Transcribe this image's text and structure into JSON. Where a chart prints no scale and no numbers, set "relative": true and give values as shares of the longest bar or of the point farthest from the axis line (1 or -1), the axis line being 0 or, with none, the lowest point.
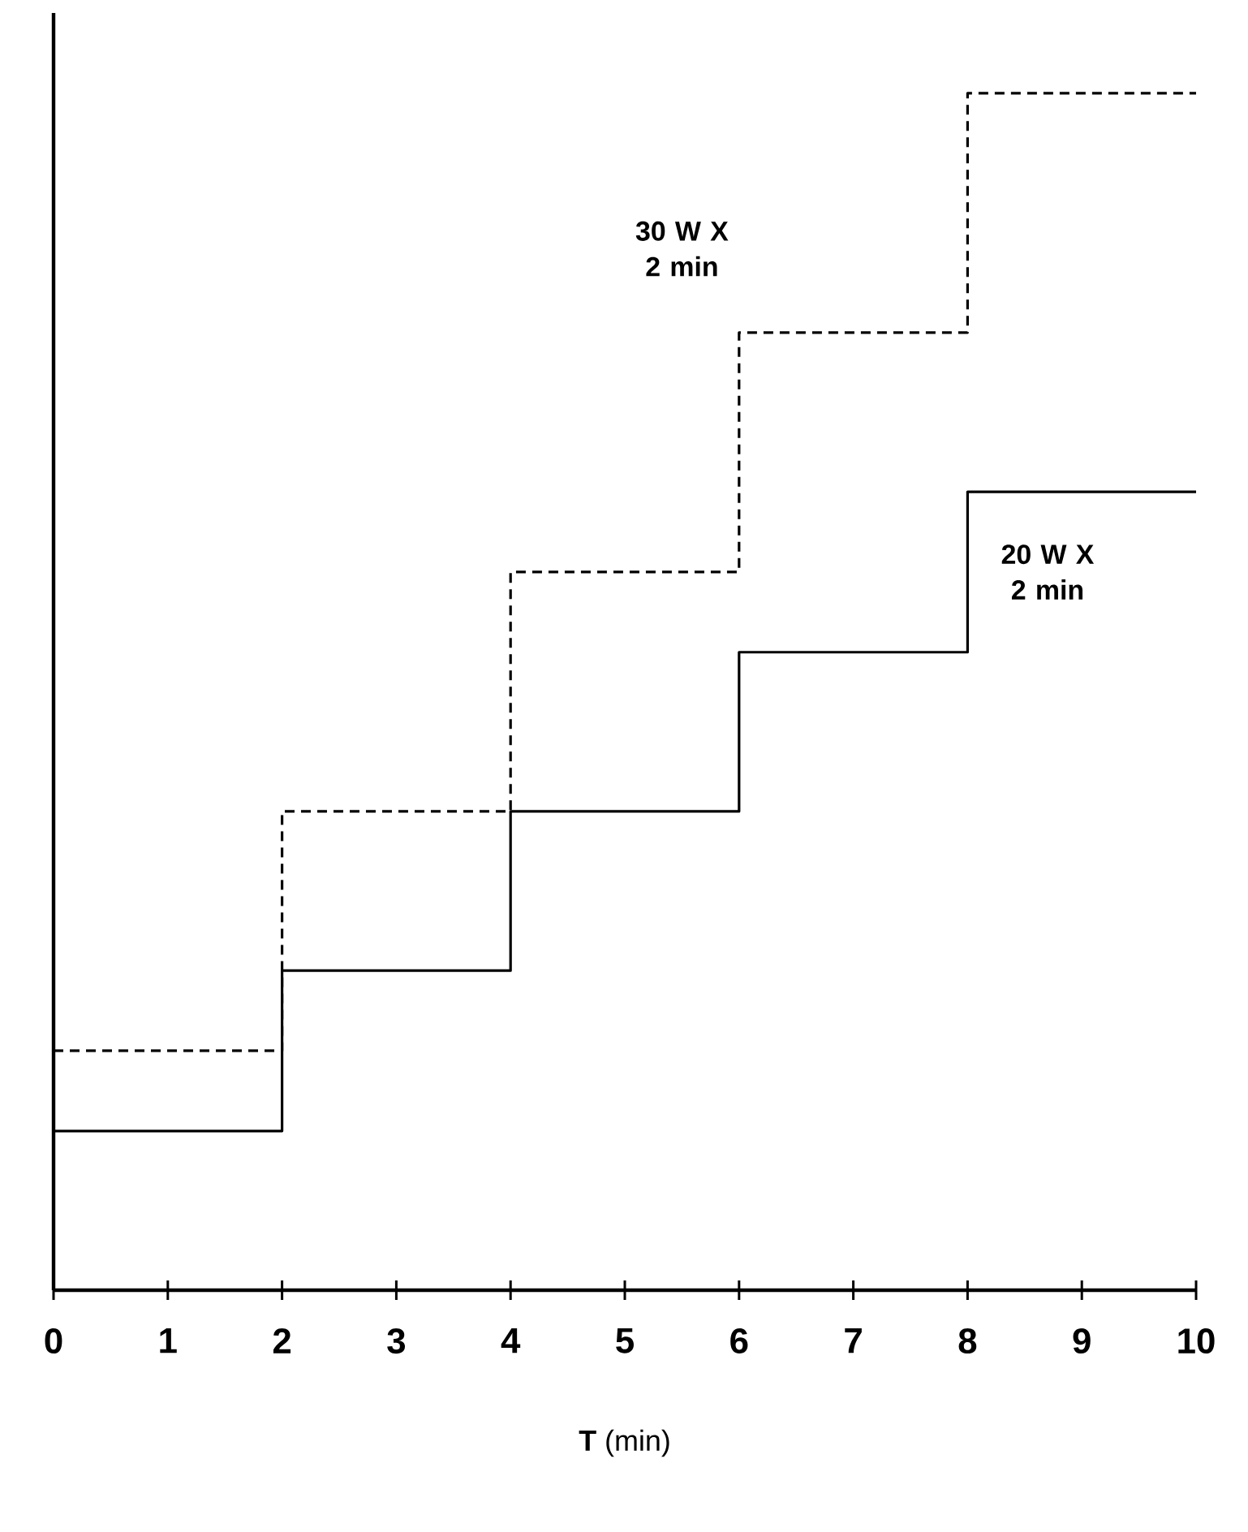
{
  "chart_data": {
    "type": "step",
    "relative": true,
    "xlabel": "**T** (min)",
    "xlim": [
      0,
      10
    ],
    "xticks": [
      0,
      1,
      2,
      3,
      4,
      5,
      6,
      7,
      8,
      9,
      10
    ],
    "grid": false,
    "marker": "none",
    "series": [
      {
        "name": "20 W X 2 min",
        "color": "#000000",
        "line_style": "solid",
        "x": [
          0,
          2,
          4,
          6,
          8,
          10
        ],
        "values": [
          0.133,
          0.267,
          0.4,
          0.533,
          0.667,
          0.667
        ]
      },
      {
        "name": "30 W X 2 min",
        "color": "#000000",
        "line_style": "dashed",
        "x": [
          0,
          2,
          4,
          6,
          8,
          10
        ],
        "values": [
          0.2,
          0.4,
          0.6,
          0.8,
          1,
          1
        ]
      }
    ]
  }
}
